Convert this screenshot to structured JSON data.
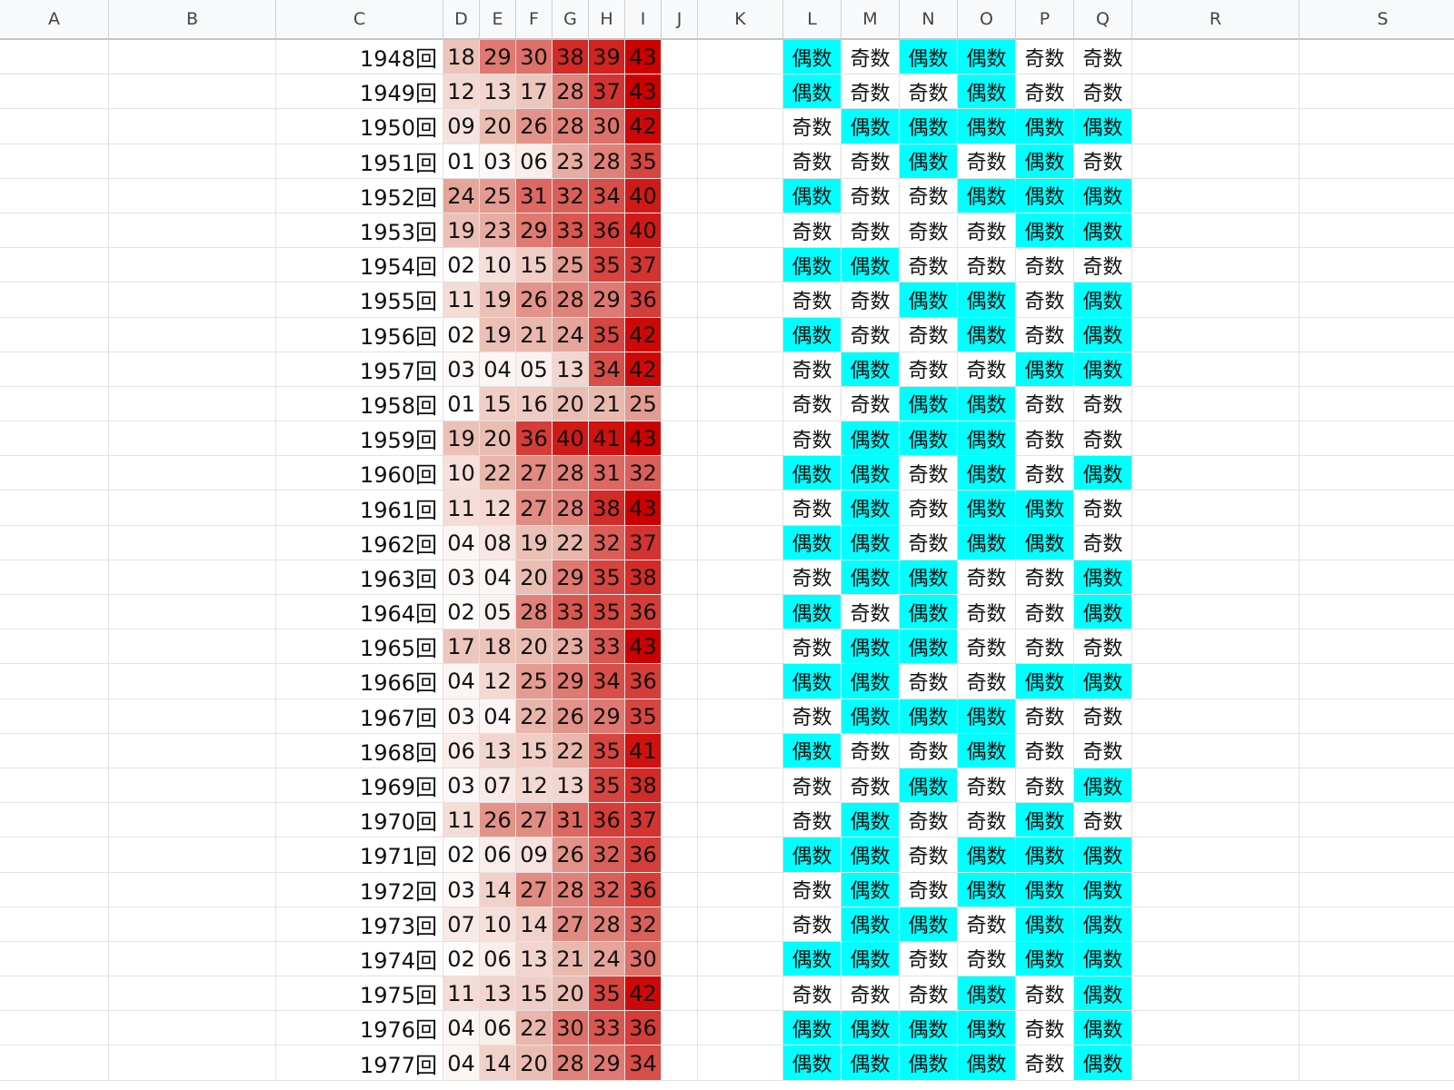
{
  "columns": [
    "A",
    "B",
    "C",
    "D",
    "E",
    "F",
    "G",
    "H",
    "I",
    "J",
    "K",
    "L",
    "M",
    "N",
    "O",
    "P",
    "Q",
    "R",
    "S"
  ],
  "labels": {
    "odd": "奇数",
    "even": "偶数",
    "round_suffix": "回"
  },
  "colors": {
    "even_highlight": "#00ffff",
    "heat_low": "#ffffff",
    "heat_mid": "#e8b6aa",
    "heat_high": "#cc0000",
    "grid_line": "#e2e2e2",
    "header_bg": "#f8f9fa"
  },
  "heat_range": [
    1,
    43
  ],
  "rows": [
    {
      "round": "1948回",
      "nums": [
        "18",
        "29",
        "30",
        "38",
        "39",
        "43"
      ],
      "parity": [
        "偶数",
        "奇数",
        "偶数",
        "偶数",
        "奇数",
        "奇数"
      ]
    },
    {
      "round": "1949回",
      "nums": [
        "12",
        "13",
        "17",
        "28",
        "37",
        "43"
      ],
      "parity": [
        "偶数",
        "奇数",
        "奇数",
        "偶数",
        "奇数",
        "奇数"
      ]
    },
    {
      "round": "1950回",
      "nums": [
        "09",
        "20",
        "26",
        "28",
        "30",
        "42"
      ],
      "parity": [
        "奇数",
        "偶数",
        "偶数",
        "偶数",
        "偶数",
        "偶数"
      ]
    },
    {
      "round": "1951回",
      "nums": [
        "01",
        "03",
        "06",
        "23",
        "28",
        "35"
      ],
      "parity": [
        "奇数",
        "奇数",
        "偶数",
        "奇数",
        "偶数",
        "奇数"
      ]
    },
    {
      "round": "1952回",
      "nums": [
        "24",
        "25",
        "31",
        "32",
        "34",
        "40"
      ],
      "parity": [
        "偶数",
        "奇数",
        "奇数",
        "偶数",
        "偶数",
        "偶数"
      ]
    },
    {
      "round": "1953回",
      "nums": [
        "19",
        "23",
        "29",
        "33",
        "36",
        "40"
      ],
      "parity": [
        "奇数",
        "奇数",
        "奇数",
        "奇数",
        "偶数",
        "偶数"
      ]
    },
    {
      "round": "1954回",
      "nums": [
        "02",
        "10",
        "15",
        "25",
        "35",
        "37"
      ],
      "parity": [
        "偶数",
        "偶数",
        "奇数",
        "奇数",
        "奇数",
        "奇数"
      ]
    },
    {
      "round": "1955回",
      "nums": [
        "11",
        "19",
        "26",
        "28",
        "29",
        "36"
      ],
      "parity": [
        "奇数",
        "奇数",
        "偶数",
        "偶数",
        "奇数",
        "偶数"
      ]
    },
    {
      "round": "1956回",
      "nums": [
        "02",
        "19",
        "21",
        "24",
        "35",
        "42"
      ],
      "parity": [
        "偶数",
        "奇数",
        "奇数",
        "偶数",
        "奇数",
        "偶数"
      ]
    },
    {
      "round": "1957回",
      "nums": [
        "03",
        "04",
        "05",
        "13",
        "34",
        "42"
      ],
      "parity": [
        "奇数",
        "偶数",
        "奇数",
        "奇数",
        "偶数",
        "偶数"
      ]
    },
    {
      "round": "1958回",
      "nums": [
        "01",
        "15",
        "16",
        "20",
        "21",
        "25"
      ],
      "parity": [
        "奇数",
        "奇数",
        "偶数",
        "偶数",
        "奇数",
        "奇数"
      ]
    },
    {
      "round": "1959回",
      "nums": [
        "19",
        "20",
        "36",
        "40",
        "41",
        "43"
      ],
      "parity": [
        "奇数",
        "偶数",
        "偶数",
        "偶数",
        "奇数",
        "奇数"
      ]
    },
    {
      "round": "1960回",
      "nums": [
        "10",
        "22",
        "27",
        "28",
        "31",
        "32"
      ],
      "parity": [
        "偶数",
        "偶数",
        "奇数",
        "偶数",
        "奇数",
        "偶数"
      ]
    },
    {
      "round": "1961回",
      "nums": [
        "11",
        "12",
        "27",
        "28",
        "38",
        "43"
      ],
      "parity": [
        "奇数",
        "偶数",
        "奇数",
        "偶数",
        "偶数",
        "奇数"
      ]
    },
    {
      "round": "1962回",
      "nums": [
        "04",
        "08",
        "19",
        "22",
        "32",
        "37"
      ],
      "parity": [
        "偶数",
        "偶数",
        "奇数",
        "偶数",
        "偶数",
        "奇数"
      ]
    },
    {
      "round": "1963回",
      "nums": [
        "03",
        "04",
        "20",
        "29",
        "35",
        "38"
      ],
      "parity": [
        "奇数",
        "偶数",
        "偶数",
        "奇数",
        "奇数",
        "偶数"
      ]
    },
    {
      "round": "1964回",
      "nums": [
        "02",
        "05",
        "28",
        "33",
        "35",
        "36"
      ],
      "parity": [
        "偶数",
        "奇数",
        "偶数",
        "奇数",
        "奇数",
        "偶数"
      ]
    },
    {
      "round": "1965回",
      "nums": [
        "17",
        "18",
        "20",
        "23",
        "33",
        "43"
      ],
      "parity": [
        "奇数",
        "偶数",
        "偶数",
        "奇数",
        "奇数",
        "奇数"
      ]
    },
    {
      "round": "1966回",
      "nums": [
        "04",
        "12",
        "25",
        "29",
        "34",
        "36"
      ],
      "parity": [
        "偶数",
        "偶数",
        "奇数",
        "奇数",
        "偶数",
        "偶数"
      ]
    },
    {
      "round": "1967回",
      "nums": [
        "03",
        "04",
        "22",
        "26",
        "29",
        "35"
      ],
      "parity": [
        "奇数",
        "偶数",
        "偶数",
        "偶数",
        "奇数",
        "奇数"
      ]
    },
    {
      "round": "1968回",
      "nums": [
        "06",
        "13",
        "15",
        "22",
        "35",
        "41"
      ],
      "parity": [
        "偶数",
        "奇数",
        "奇数",
        "偶数",
        "奇数",
        "奇数"
      ]
    },
    {
      "round": "1969回",
      "nums": [
        "03",
        "07",
        "12",
        "13",
        "35",
        "38"
      ],
      "parity": [
        "奇数",
        "奇数",
        "偶数",
        "奇数",
        "奇数",
        "偶数"
      ]
    },
    {
      "round": "1970回",
      "nums": [
        "11",
        "26",
        "27",
        "31",
        "36",
        "37"
      ],
      "parity": [
        "奇数",
        "偶数",
        "奇数",
        "奇数",
        "偶数",
        "奇数"
      ]
    },
    {
      "round": "1971回",
      "nums": [
        "02",
        "06",
        "09",
        "26",
        "32",
        "36"
      ],
      "parity": [
        "偶数",
        "偶数",
        "奇数",
        "偶数",
        "偶数",
        "偶数"
      ]
    },
    {
      "round": "1972回",
      "nums": [
        "03",
        "14",
        "27",
        "28",
        "32",
        "36"
      ],
      "parity": [
        "奇数",
        "偶数",
        "奇数",
        "偶数",
        "偶数",
        "偶数"
      ]
    },
    {
      "round": "1973回",
      "nums": [
        "07",
        "10",
        "14",
        "27",
        "28",
        "32"
      ],
      "parity": [
        "奇数",
        "偶数",
        "偶数",
        "奇数",
        "偶数",
        "偶数"
      ]
    },
    {
      "round": "1974回",
      "nums": [
        "02",
        "06",
        "13",
        "21",
        "24",
        "30"
      ],
      "parity": [
        "偶数",
        "偶数",
        "奇数",
        "奇数",
        "偶数",
        "偶数"
      ]
    },
    {
      "round": "1975回",
      "nums": [
        "11",
        "13",
        "15",
        "20",
        "35",
        "42"
      ],
      "parity": [
        "奇数",
        "奇数",
        "奇数",
        "偶数",
        "奇数",
        "偶数"
      ]
    },
    {
      "round": "1976回",
      "nums": [
        "04",
        "06",
        "22",
        "30",
        "33",
        "36"
      ],
      "parity": [
        "偶数",
        "偶数",
        "偶数",
        "偶数",
        "奇数",
        "偶数"
      ]
    },
    {
      "round": "1977回",
      "nums": [
        "04",
        "14",
        "20",
        "28",
        "29",
        "34"
      ],
      "parity": [
        "偶数",
        "偶数",
        "偶数",
        "偶数",
        "奇数",
        "偶数"
      ]
    }
  ]
}
